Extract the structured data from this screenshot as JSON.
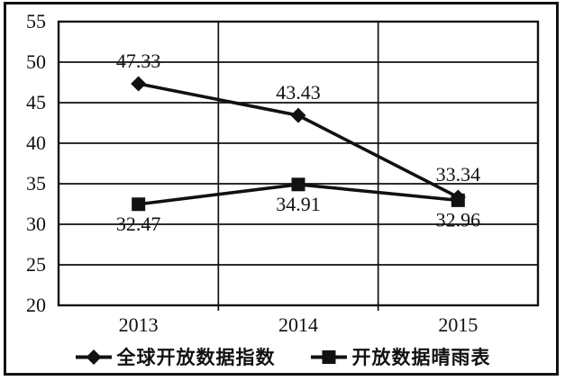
{
  "chart_data": {
    "type": "line",
    "title": "",
    "categories": [
      "2013",
      "2014",
      "2015"
    ],
    "series": [
      {
        "name": "全球开放数据指数",
        "marker": "diamond",
        "values": [
          47.33,
          43.43,
          33.34
        ],
        "data_labels": [
          "47.33",
          "43.43",
          "33.34"
        ],
        "label_position": "above"
      },
      {
        "name": "开放数据晴雨表",
        "marker": "square",
        "values": [
          32.47,
          34.91,
          32.96
        ],
        "data_labels": [
          "32.47",
          "34.91",
          "32.96"
        ],
        "label_position": "below"
      }
    ],
    "xlabel": "",
    "ylabel": "",
    "ylim": [
      20,
      55
    ],
    "yticks": [
      55,
      50,
      45,
      40,
      35,
      30,
      25,
      20
    ],
    "grid": {
      "horizontal": true,
      "vertical_category_dividers": true
    },
    "legend_position": "bottom",
    "colors": {
      "ink": "#111111",
      "background": "#ffffff"
    }
  }
}
